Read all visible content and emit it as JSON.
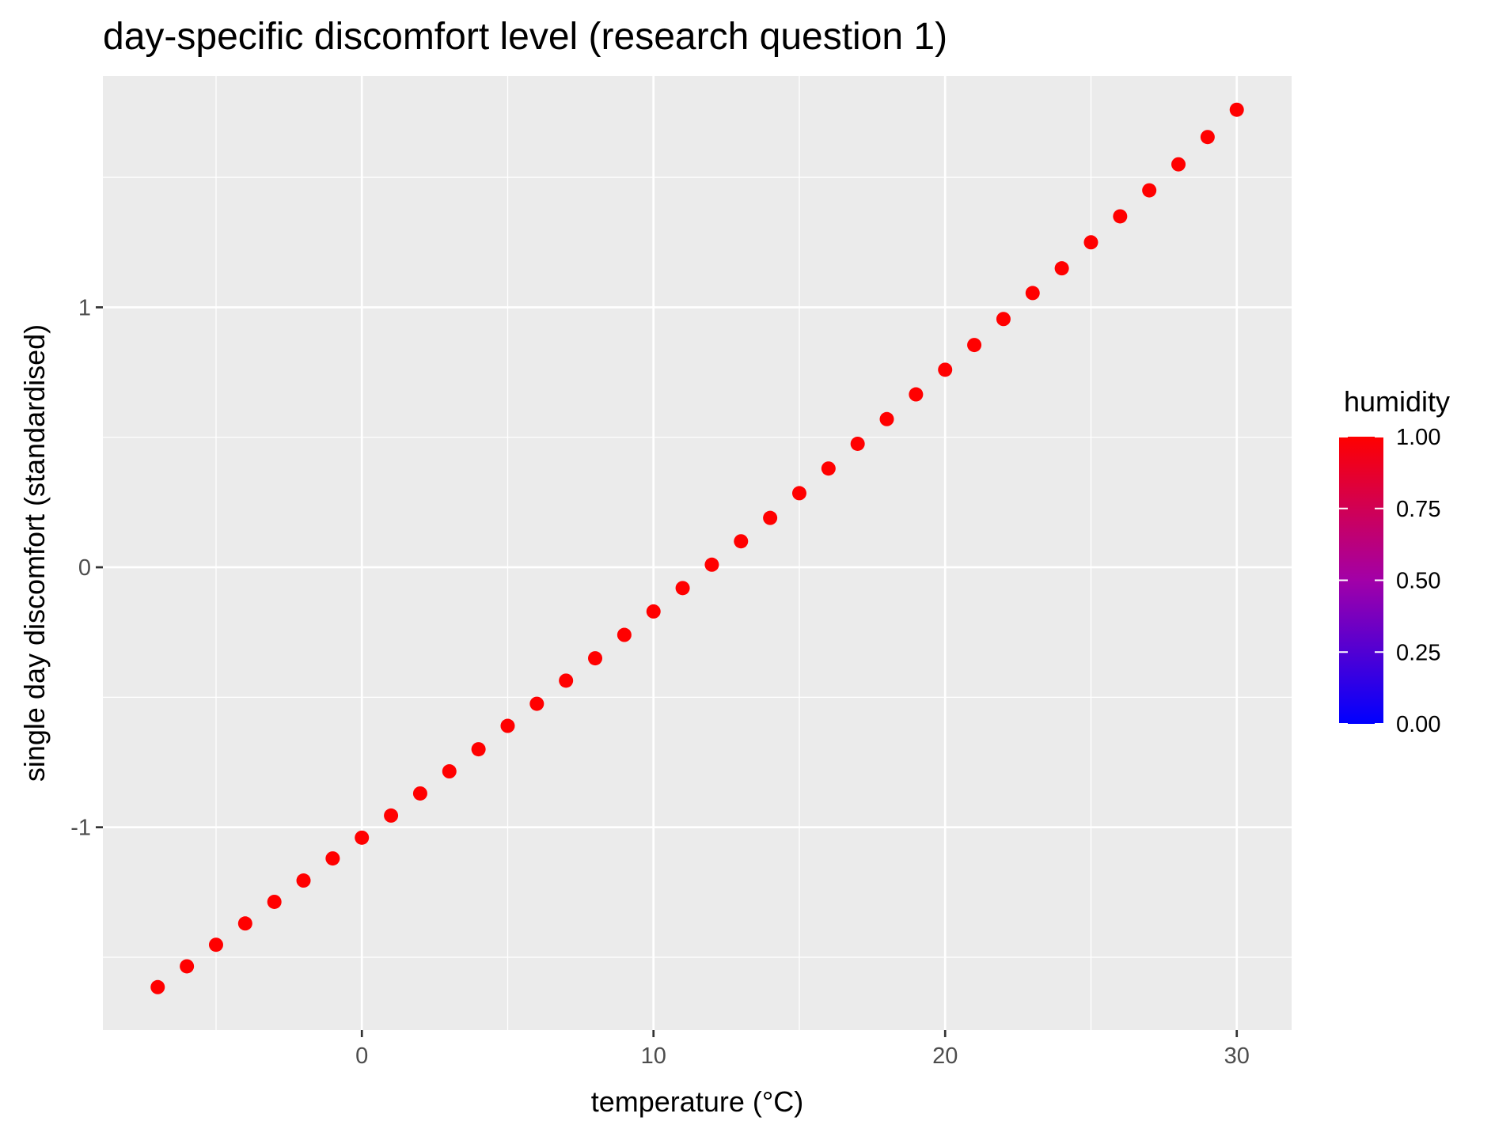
{
  "chart_data": {
    "type": "scatter",
    "title": "day-specific discomfort level (research question 1)",
    "xlabel": "temperature (°C)",
    "ylabel": "single day discomfort (standardised)",
    "xlim": [
      -8.88,
      31.88
    ],
    "ylim": [
      -1.78,
      1.89
    ],
    "x_ticks": [
      0,
      10,
      20,
      30
    ],
    "x_tick_labels": [
      "0",
      "10",
      "20",
      "30"
    ],
    "x_minor_ticks": [
      -5,
      5,
      15,
      25
    ],
    "y_ticks": [
      -1,
      0,
      1
    ],
    "y_tick_labels": [
      "-1",
      "0",
      "1"
    ],
    "y_minor_ticks": [
      -1.5,
      -0.5,
      0.5,
      1.5
    ],
    "grid": true,
    "point_color": "#ff0000",
    "panel_background": "#ebebeb",
    "series": [
      {
        "x": [
          -7,
          -6,
          -5,
          -4,
          -3,
          -2,
          -1,
          0,
          1,
          2,
          3,
          4,
          5,
          6,
          7,
          8,
          9,
          10,
          11,
          12,
          13,
          14,
          15,
          16,
          17,
          18,
          19,
          20,
          21,
          22,
          23,
          24,
          25,
          26,
          27,
          28,
          29,
          30
        ],
        "y": [
          -1.615,
          -1.535,
          -1.452,
          -1.37,
          -1.287,
          -1.205,
          -1.12,
          -1.04,
          -0.955,
          -0.87,
          -0.785,
          -0.7,
          -0.61,
          -0.525,
          -0.436,
          -0.35,
          -0.26,
          -0.17,
          -0.08,
          0.01,
          0.1,
          0.19,
          0.285,
          0.38,
          0.475,
          0.57,
          0.665,
          0.76,
          0.855,
          0.955,
          1.055,
          1.15,
          1.25,
          1.35,
          1.45,
          1.55,
          1.655,
          1.76
        ]
      }
    ],
    "legend": {
      "title": "humidity",
      "position": "right",
      "type": "colorbar",
      "low_color": "#0000ff",
      "high_color": "#ff0000",
      "range": [
        0,
        1
      ],
      "ticks": [
        0,
        0.25,
        0.5,
        0.75,
        1.0
      ],
      "tick_labels": [
        "0.00",
        "0.25",
        "0.50",
        "0.75",
        "1.00"
      ]
    }
  }
}
